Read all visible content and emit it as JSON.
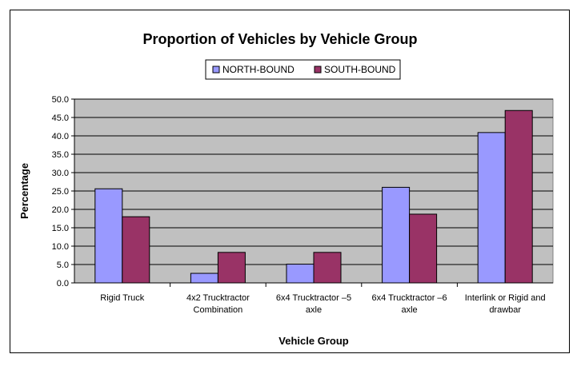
{
  "chart_data": {
    "type": "bar",
    "title": "Proportion of Vehicles by Vehicle Group",
    "xlabel": "Vehicle Group",
    "ylabel": "Percentage",
    "ylim": [
      0,
      50
    ],
    "ytick_step": 5,
    "ytick_labels": [
      "0.0",
      "5.0",
      "10.0",
      "15.0",
      "20.0",
      "25.0",
      "30.0",
      "35.0",
      "40.0",
      "45.0",
      "50.0"
    ],
    "grid": true,
    "legend_position": "top-center",
    "categories": [
      [
        "Rigid Truck"
      ],
      [
        "4x2 Trucktractor",
        "Combination"
      ],
      [
        "6x4 Trucktractor –5",
        "axle"
      ],
      [
        "6x4 Trucktractor –6",
        "axle"
      ],
      [
        "Interlink or Rigid and",
        "drawbar"
      ]
    ],
    "series": [
      {
        "name": "NORTH-BOUND",
        "color": "#9999ff",
        "values": [
          25.6,
          2.6,
          5.1,
          26.0,
          40.9
        ]
      },
      {
        "name": "SOUTH-BOUND",
        "color": "#993366",
        "values": [
          18.0,
          8.3,
          8.3,
          18.7,
          46.9
        ]
      }
    ],
    "plot_background": "#c0c0c0"
  }
}
